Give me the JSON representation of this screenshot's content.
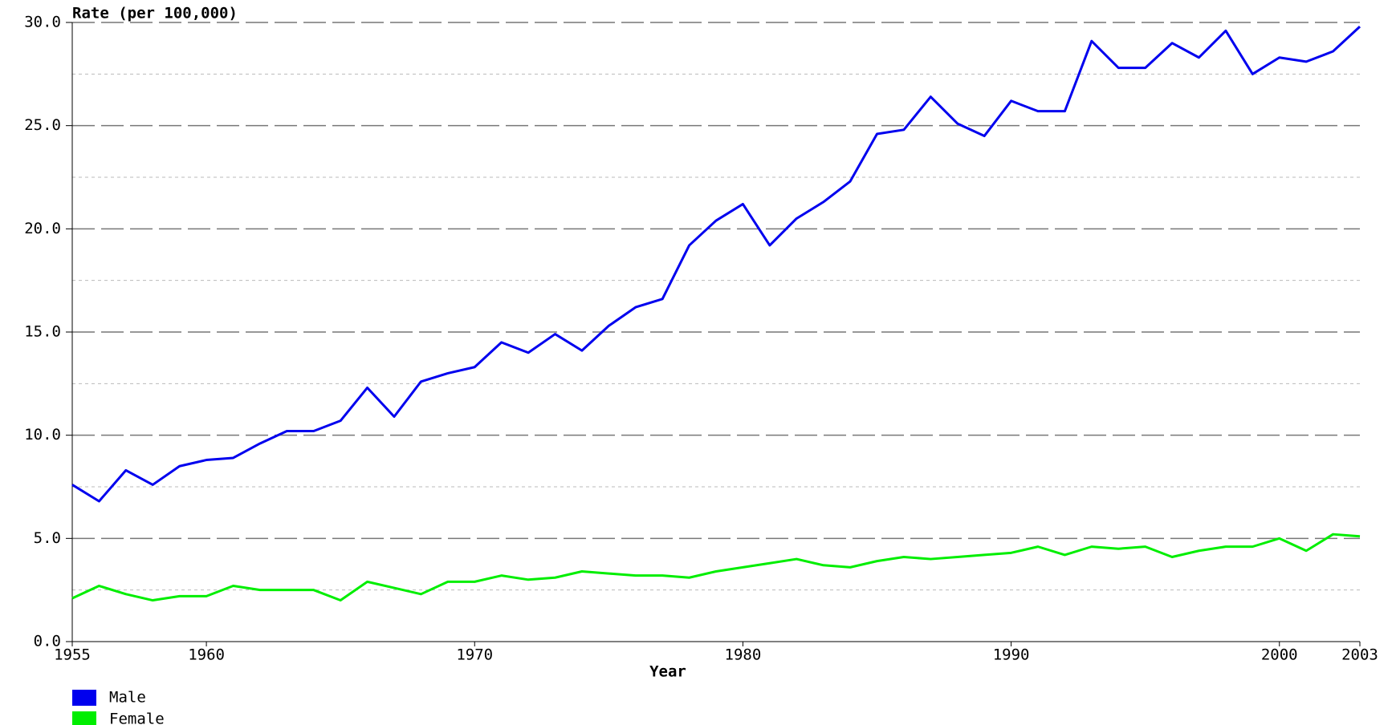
{
  "chart_data": {
    "type": "line",
    "y_label": "Rate (per 100,000)",
    "x_label": "Year",
    "x": [
      1955,
      1956,
      1957,
      1958,
      1959,
      1960,
      1961,
      1962,
      1963,
      1964,
      1965,
      1966,
      1967,
      1968,
      1969,
      1970,
      1971,
      1972,
      1973,
      1974,
      1975,
      1976,
      1977,
      1978,
      1979,
      1980,
      1981,
      1982,
      1983,
      1984,
      1985,
      1986,
      1987,
      1988,
      1989,
      1990,
      1991,
      1992,
      1993,
      1994,
      1995,
      1996,
      1997,
      1998,
      1999,
      2000,
      2001,
      2002,
      2003
    ],
    "series": [
      {
        "name": "Male",
        "color": "#0000ee",
        "values": [
          7.6,
          6.8,
          8.3,
          7.6,
          8.5,
          8.8,
          8.9,
          9.6,
          10.2,
          10.2,
          10.7,
          12.3,
          10.9,
          12.6,
          13.0,
          13.3,
          14.5,
          14.0,
          14.9,
          14.1,
          15.3,
          16.2,
          16.6,
          19.2,
          20.4,
          21.2,
          19.2,
          20.5,
          21.3,
          22.3,
          24.6,
          24.8,
          26.4,
          25.1,
          24.5,
          26.2,
          25.7,
          25.7,
          29.1,
          27.8,
          27.8,
          29.0,
          28.3,
          29.6,
          27.5,
          28.3,
          28.1,
          28.6,
          29.8
        ]
      },
      {
        "name": "Female",
        "color": "#00ee00",
        "values": [
          2.1,
          2.7,
          2.3,
          2.0,
          2.2,
          2.2,
          2.7,
          2.5,
          2.5,
          2.5,
          2.0,
          2.9,
          2.6,
          2.3,
          2.9,
          2.9,
          3.2,
          3.0,
          3.1,
          3.4,
          3.3,
          3.2,
          3.2,
          3.1,
          3.4,
          3.6,
          3.8,
          4.0,
          3.7,
          3.6,
          3.9,
          4.1,
          4.0,
          4.1,
          4.2,
          4.3,
          4.6,
          4.2,
          4.6,
          4.5,
          4.6,
          4.1,
          4.4,
          4.6,
          4.6,
          5.0,
          4.4,
          5.2,
          5.1
        ]
      }
    ],
    "xlim": [
      1955,
      2003
    ],
    "xticks": [
      1955,
      1960,
      1970,
      1980,
      1990,
      2000,
      2003
    ],
    "ylim": [
      0,
      30
    ],
    "yticks": [
      {
        "value": 0,
        "label": "0.0"
      },
      {
        "value": 5,
        "label": "5.0"
      },
      {
        "value": 10,
        "label": "10.0"
      },
      {
        "value": 15,
        "label": "15.0"
      },
      {
        "value": 20,
        "label": "20.0"
      },
      {
        "value": 25,
        "label": "25.0"
      },
      {
        "value": 30,
        "label": "30.0"
      }
    ],
    "yminorticks": [
      2.5,
      7.5,
      12.5,
      17.5,
      22.5,
      27.5
    ],
    "grid": true,
    "legend": "bottom-left"
  }
}
